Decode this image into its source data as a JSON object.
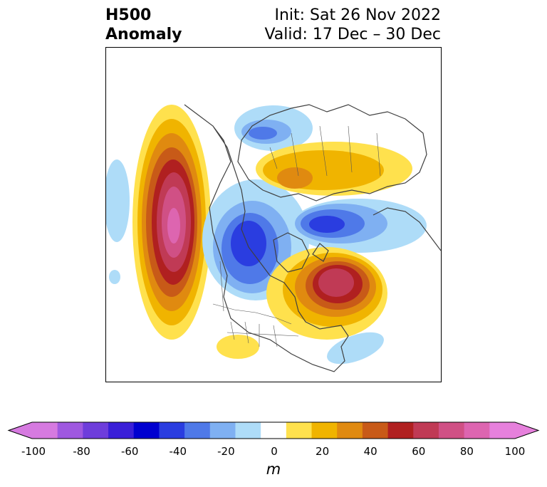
{
  "title": {
    "line1_left": "H500",
    "line2_left": "Anomaly",
    "line1_right": "Init: Sat 26 Nov 2022",
    "line2_right": "Valid: 17 Dec – 30 Dec"
  },
  "colorbar": {
    "ticks": [
      "-100",
      "-80",
      "-60",
      "-40",
      "-20",
      "0",
      "20",
      "40",
      "60",
      "80",
      "100"
    ],
    "units": "m",
    "colors": [
      "#d67ae0",
      "#9f58e0",
      "#6e3ddb",
      "#3a1fd8",
      "#0000d0",
      "#2a3de0",
      "#4f79e8",
      "#7fb0f2",
      "#aedcf8",
      "#ffffff",
      "#ffe14d",
      "#f0b400",
      "#e08a10",
      "#c85a18",
      "#b02020",
      "#c03a55",
      "#d05085",
      "#dd65b0",
      "#e680dc"
    ]
  },
  "chart_data": {
    "type": "heatmap",
    "variable": "500 hPa geopotential height anomaly",
    "units": "m",
    "colorbar_range": [
      -100,
      100
    ],
    "anomaly_centers": [
      {
        "region": "Gulf of Alaska / NE Pacific",
        "sign": "positive",
        "peak_m": 80
      },
      {
        "region": "Hudson Bay / Labrador",
        "sign": "positive",
        "peak_m": 60
      },
      {
        "region": "Central Siberia",
        "sign": "positive",
        "peak_m": 30
      },
      {
        "region": "Southwestern US / Mexico",
        "sign": "positive",
        "peak_m": 20
      },
      {
        "region": "Alaska / Yukon",
        "sign": "negative",
        "peak_m": -60
      },
      {
        "region": "Arctic / Barents-Kara Sea",
        "sign": "negative",
        "peak_m": -40
      },
      {
        "region": "East Siberia",
        "sign": "negative",
        "peak_m": -30
      },
      {
        "region": "Central Pacific",
        "sign": "negative",
        "peak_m": -10
      },
      {
        "region": "Western North Atlantic",
        "sign": "negative",
        "peak_m": -10
      }
    ]
  }
}
